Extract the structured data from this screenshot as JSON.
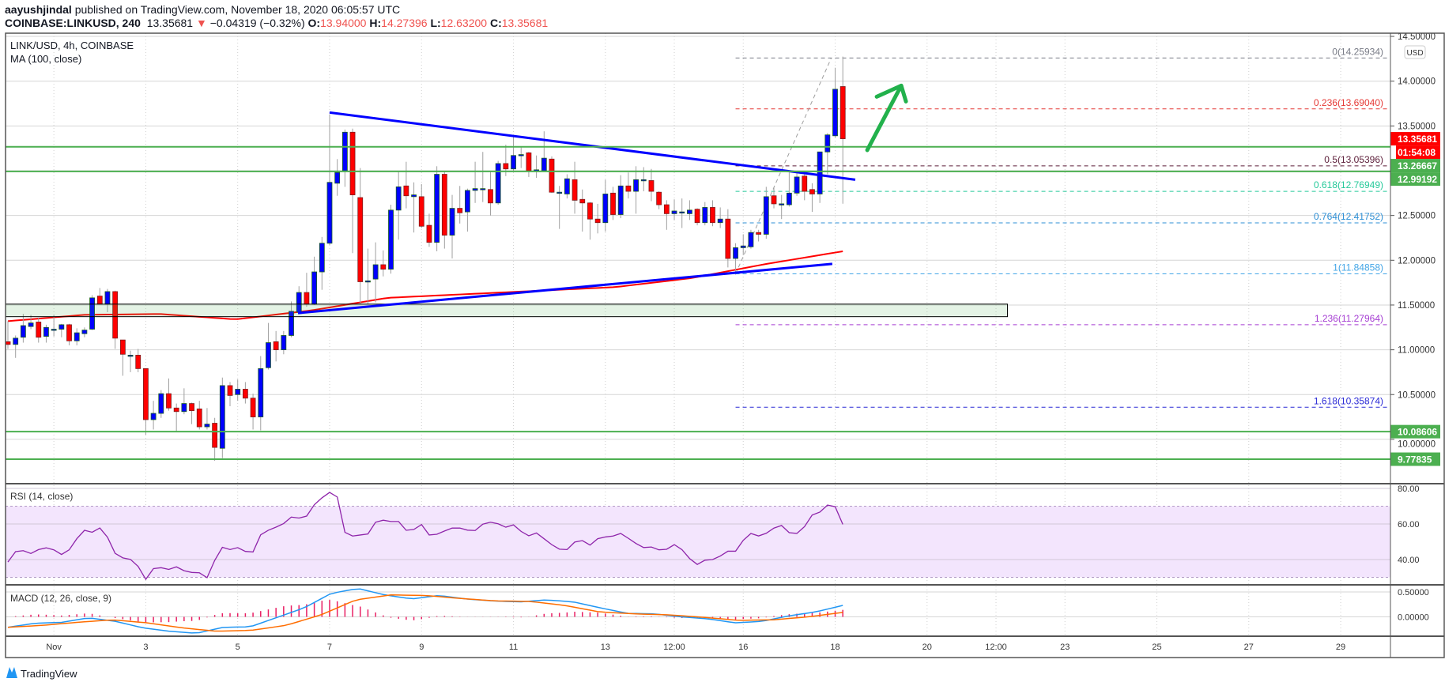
{
  "header": {
    "publisher": "aayushjindal",
    "published_text": "published on TradingView.com, November 18, 2020 06:05:57 UTC",
    "symbol": "COINBASE:LINKUSD, 240",
    "last": "13.35681",
    "change": "−0.04319 (−0.32%)",
    "change_direction": "down",
    "o_label": "O:",
    "o": "13.94000",
    "h_label": "H:",
    "h": "14.27396",
    "l_label": "L:",
    "l": "12.63200",
    "c_label": "C:",
    "c": "13.35681"
  },
  "legend": {
    "title": "LINK/USD, 4h, COINBASE",
    "ma": "MA (100, close)",
    "rsi": "RSI (14, close)",
    "macd": "MACD (12, 26, close, 9)"
  },
  "price_axis": {
    "currency": "USD",
    "ticks": [
      {
        "value": 14.5,
        "label": "14.50000"
      },
      {
        "value": 14.0,
        "label": "14.00000"
      },
      {
        "value": 13.5,
        "label": "13.50000"
      },
      {
        "value": 13.0,
        "label": ""
      },
      {
        "value": 12.5,
        "label": "12.50000"
      },
      {
        "value": 12.0,
        "label": "12.00000"
      },
      {
        "value": 11.5,
        "label": "11.50000"
      },
      {
        "value": 11.0,
        "label": "11.00000"
      },
      {
        "value": 10.5,
        "label": "10.50000"
      },
      {
        "value": 10.0,
        "label": "10.00000"
      }
    ],
    "badges": [
      {
        "price": 13.35681,
        "text": "13.35681",
        "color": "#ff0000"
      },
      {
        "text": "01:54:08",
        "color": "#ff0000",
        "below_previous": true
      },
      {
        "price": 13.26667,
        "text": "13.26667",
        "color": "#4caf50"
      },
      {
        "price": 12.99192,
        "text": "12.99192",
        "color": "#4caf50"
      },
      {
        "price": 10.08606,
        "text": "10.08606",
        "color": "#4caf50"
      },
      {
        "price": 9.77835,
        "text": "9.77835",
        "color": "#4caf50"
      }
    ]
  },
  "rsi_axis": {
    "ticks": [
      {
        "value": 80,
        "label": "80.00"
      },
      {
        "value": 60,
        "label": "60.00"
      },
      {
        "value": 40,
        "label": "40.00"
      }
    ],
    "bands": [
      70,
      30
    ]
  },
  "macd_axis": {
    "ticks": [
      {
        "value": 0.5,
        "label": "0.50000"
      },
      {
        "value": 0,
        "label": "0.00000"
      }
    ]
  },
  "time_axis": {
    "ticks": [
      {
        "label": "Nov",
        "time": "2020-11-01T00:00"
      },
      {
        "label": "3",
        "time": "2020-11-03T00:00"
      },
      {
        "label": "5",
        "time": "2020-11-05T00:00"
      },
      {
        "label": "7",
        "time": "2020-11-07T00:00"
      },
      {
        "label": "9",
        "time": "2020-11-09T00:00"
      },
      {
        "label": "11",
        "time": "2020-11-11T00:00"
      },
      {
        "label": "13",
        "time": "2020-11-13T00:00"
      },
      {
        "label": "12:00",
        "time": "2020-11-14T12:00"
      },
      {
        "label": "16",
        "time": "2020-11-16T00:00"
      },
      {
        "label": "18",
        "time": "2020-11-18T00:00"
      },
      {
        "label": "20",
        "time": "2020-11-20T00:00"
      },
      {
        "label": "12:00",
        "time": "2020-11-21T12:00"
      },
      {
        "label": "23",
        "time": "2020-11-23T00:00"
      },
      {
        "label": "25",
        "time": "2020-11-25T00:00"
      },
      {
        "label": "27",
        "time": "2020-11-27T00:00"
      },
      {
        "label": "29",
        "time": "2020-11-29T00:00"
      }
    ]
  },
  "chart_data": {
    "type": "candlestick",
    "symbol": "LINK/USD",
    "interval": "4h",
    "candles_start": "2020-10-31T00:00",
    "ylim": [
      9.6,
      14.55
    ],
    "grid": true,
    "colors": {
      "up": "#0000ff",
      "down": "#ff0000",
      "wick": "#a0a0a0",
      "ma": "#ff0000",
      "trendline": "#0000ff",
      "level": "#4caf50",
      "arrow": "#22b14c",
      "rsi": "#8e24aa",
      "rsi_fill": "#f3e5fd",
      "macd": "#2196f3",
      "signal": "#ff6d00",
      "hist": "#e91e63"
    },
    "ohlc": [
      [
        11.09,
        11.32,
        11.01,
        11.06
      ],
      [
        11.06,
        11.16,
        10.91,
        11.13
      ],
      [
        11.14,
        11.4,
        11.08,
        11.27
      ],
      [
        11.26,
        11.39,
        11.23,
        11.3
      ],
      [
        11.31,
        11.36,
        11.08,
        11.14
      ],
      [
        11.15,
        11.28,
        11.08,
        11.25
      ],
      [
        11.23,
        11.39,
        11.15,
        11.23
      ],
      [
        11.23,
        11.29,
        11.14,
        11.28
      ],
      [
        11.28,
        11.29,
        11.05,
        11.1
      ],
      [
        11.1,
        11.24,
        11.05,
        11.19
      ],
      [
        11.18,
        11.25,
        11.14,
        11.22
      ],
      [
        11.23,
        11.61,
        11.22,
        11.58
      ],
      [
        11.6,
        11.69,
        11.51,
        11.51
      ],
      [
        11.51,
        11.68,
        11.42,
        11.65
      ],
      [
        11.65,
        11.66,
        11.01,
        11.13
      ],
      [
        11.11,
        11.11,
        10.71,
        10.95
      ],
      [
        10.94,
        10.99,
        10.75,
        10.94
      ],
      [
        10.94,
        11.01,
        10.75,
        10.79
      ],
      [
        10.79,
        10.79,
        10.05,
        10.22
      ],
      [
        10.22,
        10.43,
        10.11,
        10.29
      ],
      [
        10.29,
        10.55,
        10.24,
        10.51
      ],
      [
        10.51,
        10.68,
        10.32,
        10.35
      ],
      [
        10.35,
        10.4,
        10.08,
        10.31
      ],
      [
        10.31,
        10.57,
        10.28,
        10.4
      ],
      [
        10.4,
        10.41,
        10.17,
        10.32
      ],
      [
        10.34,
        10.43,
        10.11,
        10.14
      ],
      [
        10.14,
        10.35,
        10.11,
        10.17
      ],
      [
        10.18,
        10.24,
        9.76,
        9.91
      ],
      [
        9.9,
        10.69,
        9.79,
        10.6
      ],
      [
        10.6,
        10.64,
        10.37,
        10.49
      ],
      [
        10.5,
        10.67,
        10.43,
        10.56
      ],
      [
        10.56,
        10.64,
        10.4,
        10.46
      ],
      [
        10.46,
        10.51,
        10.11,
        10.25
      ],
      [
        10.25,
        10.93,
        10.1,
        10.79
      ],
      [
        10.8,
        11.3,
        10.78,
        11.08
      ],
      [
        11.09,
        11.21,
        10.87,
        11.0
      ],
      [
        11.0,
        11.21,
        10.95,
        11.16
      ],
      [
        11.16,
        11.54,
        11.14,
        11.43
      ],
      [
        11.42,
        11.71,
        11.4,
        11.64
      ],
      [
        11.64,
        11.86,
        11.48,
        11.51
      ],
      [
        11.51,
        12.04,
        11.5,
        11.87
      ],
      [
        11.87,
        12.26,
        11.67,
        12.19
      ],
      [
        12.19,
        13.63,
        12.17,
        12.87
      ],
      [
        12.86,
        13.13,
        12.72,
        12.98
      ],
      [
        13.0,
        13.46,
        12.82,
        13.43
      ],
      [
        13.43,
        13.47,
        12.08,
        12.73
      ],
      [
        12.7,
        13.03,
        11.51,
        11.76
      ],
      [
        11.77,
        12.13,
        11.51,
        11.77
      ],
      [
        11.79,
        12.2,
        11.53,
        11.95
      ],
      [
        11.95,
        12.11,
        11.82,
        11.9
      ],
      [
        11.9,
        12.62,
        11.85,
        12.56
      ],
      [
        12.56,
        12.99,
        12.23,
        12.82
      ],
      [
        12.83,
        13.1,
        12.58,
        12.72
      ],
      [
        12.71,
        12.87,
        12.31,
        12.73
      ],
      [
        12.71,
        12.85,
        12.36,
        12.38
      ],
      [
        12.39,
        12.52,
        12.15,
        12.2
      ],
      [
        12.2,
        13.05,
        12.1,
        12.96
      ],
      [
        12.96,
        12.99,
        12.13,
        12.28
      ],
      [
        12.28,
        12.73,
        12.02,
        12.58
      ],
      [
        12.58,
        12.83,
        12.41,
        12.53
      ],
      [
        12.54,
        12.8,
        12.32,
        12.78
      ],
      [
        12.78,
        13.1,
        12.64,
        12.8
      ],
      [
        12.8,
        13.21,
        12.65,
        12.8
      ],
      [
        12.79,
        12.99,
        12.5,
        12.64
      ],
      [
        12.64,
        13.11,
        12.62,
        13.08
      ],
      [
        13.08,
        13.29,
        12.94,
        13.02
      ],
      [
        13.02,
        13.38,
        12.99,
        13.17
      ],
      [
        13.18,
        13.26,
        13.03,
        13.18
      ],
      [
        13.2,
        13.21,
        12.93,
        13.0
      ],
      [
        13.0,
        13.17,
        12.92,
        13.01
      ],
      [
        13.0,
        13.44,
        12.99,
        13.14
      ],
      [
        13.13,
        13.16,
        12.75,
        12.76
      ],
      [
        12.76,
        12.83,
        12.35,
        12.76
      ],
      [
        12.74,
        12.96,
        12.69,
        12.91
      ],
      [
        12.9,
        13.1,
        12.52,
        12.67
      ],
      [
        12.68,
        12.79,
        12.32,
        12.64
      ],
      [
        12.64,
        12.65,
        12.23,
        12.46
      ],
      [
        12.46,
        12.63,
        12.3,
        12.42
      ],
      [
        12.42,
        12.9,
        12.32,
        12.74
      ],
      [
        12.75,
        12.82,
        12.45,
        12.51
      ],
      [
        12.51,
        12.95,
        12.47,
        12.83
      ],
      [
        12.83,
        12.98,
        12.69,
        12.77
      ],
      [
        12.77,
        13.05,
        12.52,
        12.9
      ],
      [
        12.9,
        13.04,
        12.77,
        12.9
      ],
      [
        12.89,
        13.02,
        12.66,
        12.77
      ],
      [
        12.76,
        12.77,
        12.57,
        12.62
      ],
      [
        12.62,
        12.67,
        12.34,
        12.52
      ],
      [
        12.52,
        12.68,
        12.45,
        12.55
      ],
      [
        12.54,
        12.69,
        12.36,
        12.54
      ],
      [
        12.52,
        12.67,
        12.45,
        12.56
      ],
      [
        12.57,
        12.58,
        12.39,
        12.42
      ],
      [
        12.42,
        12.65,
        12.39,
        12.59
      ],
      [
        12.59,
        12.67,
        12.38,
        12.42
      ],
      [
        12.42,
        12.59,
        12.36,
        12.46
      ],
      [
        12.46,
        12.57,
        11.92,
        12.02
      ],
      [
        12.02,
        12.19,
        11.84,
        12.14
      ],
      [
        12.14,
        12.29,
        12.06,
        12.16
      ],
      [
        12.15,
        12.34,
        12.13,
        12.31
      ],
      [
        12.31,
        12.34,
        12.21,
        12.29
      ],
      [
        12.29,
        12.82,
        12.24,
        12.71
      ],
      [
        12.72,
        12.81,
        12.58,
        12.63
      ],
      [
        12.63,
        12.73,
        12.46,
        12.63
      ],
      [
        12.62,
        12.98,
        12.6,
        12.75
      ],
      [
        12.75,
        12.98,
        12.72,
        12.93
      ],
      [
        12.94,
        12.98,
        12.67,
        12.77
      ],
      [
        12.79,
        12.86,
        12.54,
        12.74
      ],
      [
        12.74,
        13.21,
        12.64,
        13.21
      ],
      [
        13.21,
        13.42,
        12.96,
        13.4
      ],
      [
        13.39,
        14.15,
        13.37,
        13.91
      ],
      [
        13.94,
        14.27396,
        12.632,
        13.35681
      ]
    ],
    "ma100": [
      11.32,
      11.39,
      11.4,
      11.34,
      11.44,
      11.58,
      11.62,
      11.66,
      11.7,
      11.8,
      11.96,
      12.1
    ],
    "rsi": [
      38.6,
      46.7,
      42.9,
      45.9,
      47,
      42.6,
      46.2,
      56.8,
      55.3,
      58.8,
      44,
      40.5,
      39.8,
      28.5,
      36.8,
      34,
      36,
      32.6,
      33,
      29.2,
      47.4,
      45.6,
      47.1,
      41.7,
      55,
      57.3,
      59.8,
      64.8,
      62.1,
      70.9,
      76.2,
      79.7,
      52.3,
      53.8,
      53.8,
      62.9,
      61.4,
      61.4,
      54.2,
      60.8,
      52.7,
      55.3,
      57.7,
      57.7,
      55.3,
      60.2,
      61.4,
      58,
      59.8,
      52.7,
      55,
      50.5,
      45.9,
      45.6,
      52.3,
      47.7,
      52.7,
      52.7,
      54.7,
      50.8,
      46.7,
      47.1,
      44.4,
      48.6,
      44.7,
      36.5,
      39.8,
      40.1,
      44.7,
      44.7,
      55.3,
      53.2,
      55.3,
      60.3,
      54.7,
      54.7,
      64.8,
      67.1,
      73.5,
      59.8
    ],
    "macd": [
      -0.21,
      -0.13,
      -0.11,
      -0.02,
      -0.09,
      -0.22,
      -0.29,
      -0.33,
      -0.21,
      -0.2,
      -0.01,
      0.18,
      0.47,
      0.57,
      0.44,
      0.36,
      0.43,
      0.36,
      0.32,
      0.3,
      0.34,
      0.3,
      0.18,
      0.07,
      0.06,
      0.0,
      -0.04,
      -0.12,
      -0.09,
      0.02,
      0.1,
      0.23
    ],
    "signal": [
      -0.21,
      -0.17,
      -0.11,
      -0.06,
      -0.12,
      -0.22,
      -0.29,
      -0.27,
      -0.17,
      0.04,
      0.34,
      0.44,
      0.43,
      0.37,
      0.32,
      0.31,
      0.23,
      0.1,
      0.06,
      0.04,
      -0.01,
      -0.07,
      -0.06,
      0.0,
      0.09
    ],
    "horizontal_levels": [
      13.26667,
      12.99192,
      10.08606,
      9.77835
    ],
    "zone": {
      "top": 11.51,
      "bottom": 11.37,
      "start": "2020-10-30T00:00",
      "end": "2020-11-21T18:00"
    },
    "trendlines": [
      {
        "start": {
          "time": "2020-11-07T00:00",
          "price": 13.65
        },
        "end": {
          "time": "2020-11-18T10:30",
          "price": 12.9
        }
      },
      {
        "start": {
          "time": "2020-11-06T07:30",
          "price": 11.41
        },
        "end": {
          "time": "2020-11-17T22:30",
          "price": 11.96
        }
      }
    ],
    "arrow": {
      "start": {
        "time": "2020-11-18T16:45",
        "price": 13.23
      },
      "end": {
        "time": "2020-11-19T10:30",
        "price": 13.95
      }
    },
    "fibonacci": {
      "start": {
        "time": "2020-11-15T20:00",
        "price": 11.84858
      },
      "end": {
        "time": "2020-11-17T22:00",
        "price": 14.25934
      },
      "levels": [
        {
          "ratio": 0,
          "price": 14.25934,
          "label": "0(14.25934)",
          "color": "#787b86"
        },
        {
          "ratio": 0.236,
          "price": 13.6904,
          "label": "0.236(13.69040)",
          "color": "#e53935"
        },
        {
          "ratio": 0.5,
          "price": 13.05396,
          "label": "0.5(13.05396)",
          "color": "#5d1f3a"
        },
        {
          "ratio": 0.618,
          "price": 12.76949,
          "label": "0.618(12.76949)",
          "color": "#26c99a"
        },
        {
          "ratio": 0.764,
          "price": 12.41752,
          "label": "0.764(12.41752)",
          "color": "#2d8fd5"
        },
        {
          "ratio": 1,
          "price": 11.84858,
          "label": "1(11.84858)",
          "color": "#42a5e6"
        },
        {
          "ratio": 1.236,
          "price": 11.27964,
          "label": "1.236(11.27964)",
          "color": "#a63fd3"
        },
        {
          "ratio": 1.618,
          "price": 10.35874,
          "label": "1.618(10.35874)",
          "color": "#2a2ad6"
        }
      ]
    }
  },
  "footer": {
    "logo": "TradingView"
  }
}
